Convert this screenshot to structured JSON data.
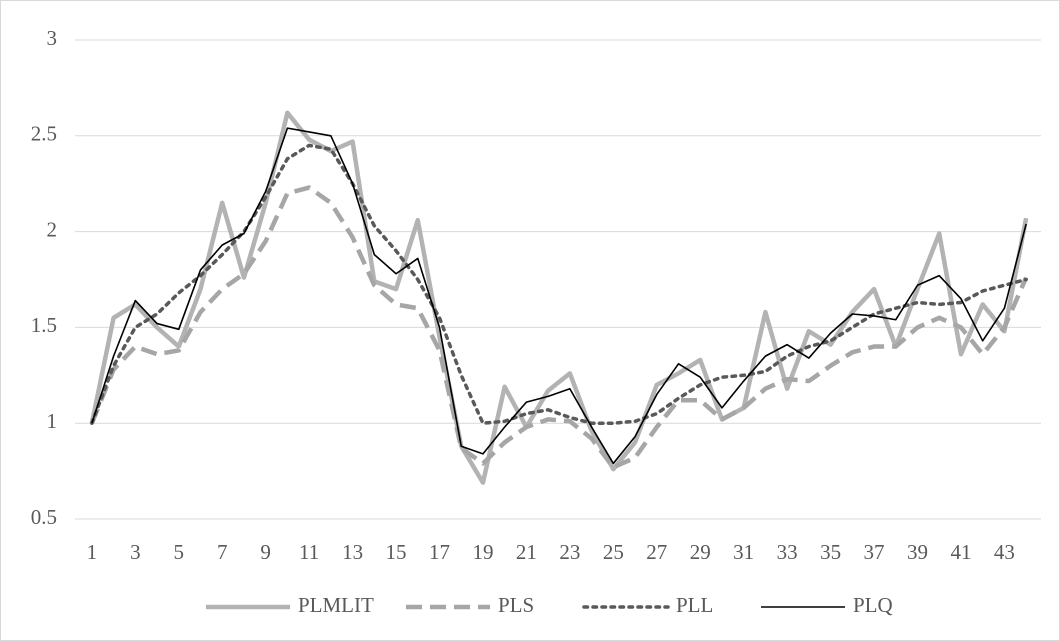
{
  "chart_data": {
    "type": "line",
    "x": [
      1,
      2,
      3,
      4,
      5,
      6,
      7,
      8,
      9,
      10,
      11,
      12,
      13,
      14,
      15,
      16,
      17,
      18,
      19,
      20,
      21,
      22,
      23,
      24,
      25,
      26,
      27,
      28,
      29,
      30,
      31,
      32,
      33,
      34,
      35,
      36,
      37,
      38,
      39,
      40,
      41,
      42,
      43,
      44
    ],
    "xlim": [
      0.5,
      44.5
    ],
    "xticks": [
      1,
      3,
      5,
      7,
      9,
      11,
      13,
      15,
      17,
      19,
      21,
      23,
      25,
      27,
      29,
      31,
      33,
      35,
      37,
      39,
      41,
      43
    ],
    "ylim": [
      0.5,
      3
    ],
    "yticks": [
      0.5,
      1,
      1.5,
      2,
      2.5,
      3
    ],
    "grid": true,
    "legend": "bottom",
    "series": [
      {
        "name": "PLMLIT",
        "color": "#b3b3b3",
        "style": "solid",
        "values": [
          1.0,
          1.55,
          1.62,
          1.5,
          1.4,
          1.7,
          2.15,
          1.76,
          2.15,
          2.62,
          2.48,
          2.42,
          2.47,
          1.74,
          1.7,
          2.06,
          1.45,
          0.88,
          0.69,
          1.19,
          0.98,
          1.17,
          1.26,
          0.96,
          0.76,
          0.9,
          1.2,
          1.26,
          1.33,
          1.02,
          1.08,
          1.58,
          1.18,
          1.48,
          1.41,
          1.58,
          1.7,
          1.4,
          1.7,
          1.99,
          1.36,
          1.62,
          1.48,
          2.07
        ]
      },
      {
        "name": "PLS",
        "color": "#a6a6a6",
        "style": "dashed",
        "values": [
          1.0,
          1.28,
          1.4,
          1.36,
          1.38,
          1.58,
          1.7,
          1.78,
          1.95,
          2.2,
          2.23,
          2.15,
          1.97,
          1.72,
          1.62,
          1.6,
          1.38,
          0.87,
          0.79,
          0.9,
          0.98,
          1.02,
          1.01,
          0.92,
          0.77,
          0.82,
          0.98,
          1.12,
          1.12,
          1.02,
          1.08,
          1.18,
          1.23,
          1.22,
          1.3,
          1.37,
          1.4,
          1.4,
          1.5,
          1.55,
          1.5,
          1.36,
          1.5,
          1.76
        ]
      },
      {
        "name": "PLL",
        "color": "#595959",
        "style": "dotted",
        "values": [
          1.0,
          1.3,
          1.5,
          1.57,
          1.68,
          1.77,
          1.88,
          2.0,
          2.18,
          2.38,
          2.45,
          2.43,
          2.25,
          2.03,
          1.9,
          1.75,
          1.55,
          1.25,
          1.0,
          1.01,
          1.05,
          1.07,
          1.03,
          1.0,
          1.0,
          1.01,
          1.05,
          1.13,
          1.2,
          1.24,
          1.25,
          1.27,
          1.35,
          1.4,
          1.43,
          1.5,
          1.57,
          1.6,
          1.63,
          1.62,
          1.63,
          1.69,
          1.72,
          1.75
        ]
      },
      {
        "name": "PLQ",
        "color": "#000000",
        "style": "solid",
        "values": [
          1.0,
          1.35,
          1.64,
          1.52,
          1.49,
          1.8,
          1.93,
          1.99,
          2.21,
          2.54,
          2.52,
          2.5,
          2.25,
          1.88,
          1.78,
          1.86,
          1.5,
          0.88,
          0.84,
          0.98,
          1.11,
          1.14,
          1.18,
          0.98,
          0.79,
          0.93,
          1.15,
          1.31,
          1.24,
          1.08,
          1.22,
          1.35,
          1.41,
          1.34,
          1.47,
          1.57,
          1.56,
          1.54,
          1.72,
          1.77,
          1.65,
          1.43,
          1.6,
          2.04
        ]
      }
    ]
  }
}
